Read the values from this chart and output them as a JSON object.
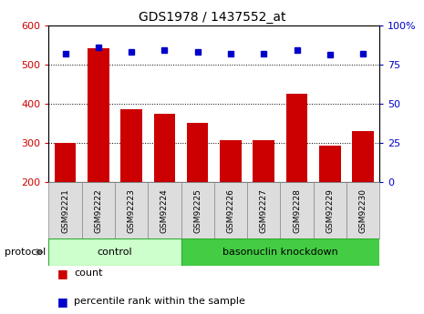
{
  "title": "GDS1978 / 1437552_at",
  "samples": [
    "GSM92221",
    "GSM92222",
    "GSM92223",
    "GSM92224",
    "GSM92225",
    "GSM92226",
    "GSM92227",
    "GSM92228",
    "GSM92229",
    "GSM92230"
  ],
  "counts": [
    300,
    540,
    385,
    375,
    350,
    307,
    307,
    425,
    292,
    330
  ],
  "percentile_ranks": [
    82,
    86,
    83,
    84,
    83,
    82,
    82,
    84,
    81,
    82
  ],
  "ylim_left": [
    200,
    600
  ],
  "ylim_right": [
    0,
    100
  ],
  "yticks_left": [
    200,
    300,
    400,
    500,
    600
  ],
  "yticks_right": [
    0,
    25,
    50,
    75,
    100
  ],
  "bar_color": "#cc0000",
  "dot_color": "#0000cc",
  "bar_bottom": 200,
  "control_label": "control",
  "knockdown_label": "basonuclin knockdown",
  "protocol_label": "protocol",
  "legend_count": "count",
  "legend_pct": "percentile rank within the sample",
  "n_control": 4,
  "n_knockdown": 6,
  "bg_color_control": "#ccffcc",
  "bg_color_knockdown": "#44cc44",
  "tick_label_color_left": "#cc0000",
  "tick_label_color_right": "#0000cc",
  "col_bg_color": "#dddddd"
}
